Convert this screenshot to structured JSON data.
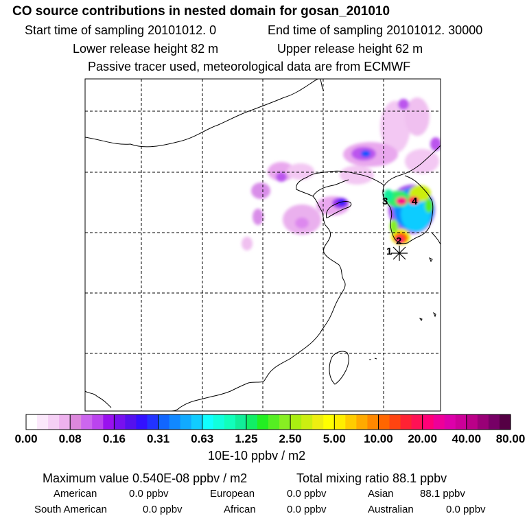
{
  "header": {
    "title": "CO  source contributions in nested domain for gosan_201010",
    "start_time": "Start time of sampling 20101012.     0",
    "end_time": "End time of sampling 20101012. 30000",
    "lower_release": "Lower release height   82 m",
    "upper_release": "Upper release height   62 m",
    "tracer_note": "Passive tracer used, meteorological data are from ECMWF"
  },
  "map": {
    "site_markers": [
      "1",
      "2",
      "3",
      "4"
    ],
    "receptor": "gosan"
  },
  "colorbar": {
    "ticks": [
      "0.00",
      "0.08",
      "0.16",
      "0.31",
      "0.63",
      "1.25",
      "2.50",
      "5.00",
      "10.00",
      "20.00",
      "40.00",
      "80.00"
    ],
    "units": "10E-10 ppbv / m2",
    "colors": [
      "#ffffff",
      "#fbe8fb",
      "#f5d0f5",
      "#eeb2ee",
      "#dd88dd",
      "#cc66ee",
      "#bb44ee",
      "#9911ee",
      "#7711ee",
      "#5511ee",
      "#3311ff",
      "#2233ff",
      "#1166ff",
      "#1188ff",
      "#11aaff",
      "#11ccff",
      "#11ffff",
      "#11ffdd",
      "#11ffbb",
      "#11ee99",
      "#11ee66",
      "#22ee22",
      "#55ee22",
      "#88ee22",
      "#aaee11",
      "#ccee11",
      "#eeee11",
      "#ffff00",
      "#ffee00",
      "#ffcc00",
      "#ffaa00",
      "#ff8800",
      "#ff6600",
      "#ff4411",
      "#ff2233",
      "#ff1155",
      "#ff0077",
      "#ee0099",
      "#dd00aa",
      "#cc0099",
      "#bb0088",
      "#990077",
      "#770066",
      "#550044"
    ]
  },
  "summary": {
    "max_label": "Maximum value  0.540E-08 ppbv / m2",
    "total_label": "Total mixing ratio       88.1 ppbv",
    "rows": [
      [
        "American",
        "0.0 ppbv",
        "European",
        "0.0 ppbv",
        "Asian",
        "88.1 ppbv"
      ],
      [
        "South American",
        "0.0 ppbv",
        "African",
        "0.0 ppbv",
        "Australian",
        "0.0 ppbv"
      ]
    ]
  }
}
